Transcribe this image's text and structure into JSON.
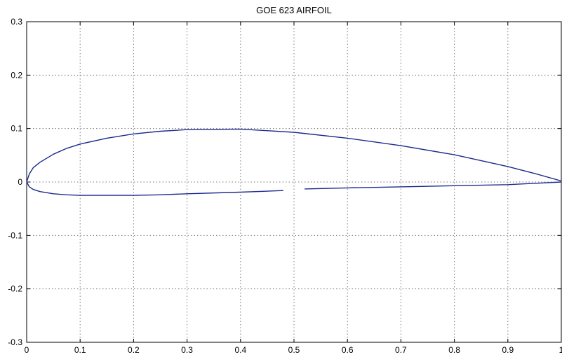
{
  "chart_data": {
    "type": "line",
    "title": "GOE 623 AIRFOIL",
    "xlabel": "",
    "ylabel": "",
    "xlim": [
      0,
      1
    ],
    "ylim": [
      -0.3,
      0.3
    ],
    "x_ticks": [
      "0",
      "0.1",
      "0.2",
      "0.3",
      "0.4",
      "0.5",
      "0.6",
      "0.7",
      "0.8",
      "0.9",
      "1"
    ],
    "y_ticks": [
      "0.3",
      "0.2",
      "0.1",
      "0",
      "-0.1",
      "-0.2",
      "-0.3"
    ],
    "grid": true,
    "line_color": "#1b2a8c",
    "series": [
      {
        "x": [
          1.0,
          0.95,
          0.9,
          0.8,
          0.7,
          0.6,
          0.5,
          0.4,
          0.3,
          0.25,
          0.2,
          0.15,
          0.1,
          0.075,
          0.05,
          0.025,
          0.0125,
          0.005,
          0.0
        ],
        "y": [
          0.002,
          0.016,
          0.029,
          0.051,
          0.068,
          0.082,
          0.093,
          0.099,
          0.098,
          0.095,
          0.09,
          0.082,
          0.071,
          0.063,
          0.052,
          0.037,
          0.027,
          0.015,
          0.0
        ]
      },
      {
        "x": [
          0.0,
          0.005,
          0.0125,
          0.025,
          0.05,
          0.075,
          0.1,
          0.15,
          0.2,
          0.25,
          0.3,
          0.4,
          0.48
        ],
        "y": [
          0.0,
          -0.009,
          -0.014,
          -0.018,
          -0.022,
          -0.024,
          -0.025,
          -0.025,
          -0.025,
          -0.024,
          -0.022,
          -0.019,
          -0.016
        ]
      },
      {
        "x": [
          0.52,
          0.6,
          0.7,
          0.8,
          0.9,
          1.0
        ],
        "y": [
          -0.013,
          -0.011,
          -0.009,
          -0.007,
          -0.005,
          0.0
        ]
      }
    ]
  }
}
